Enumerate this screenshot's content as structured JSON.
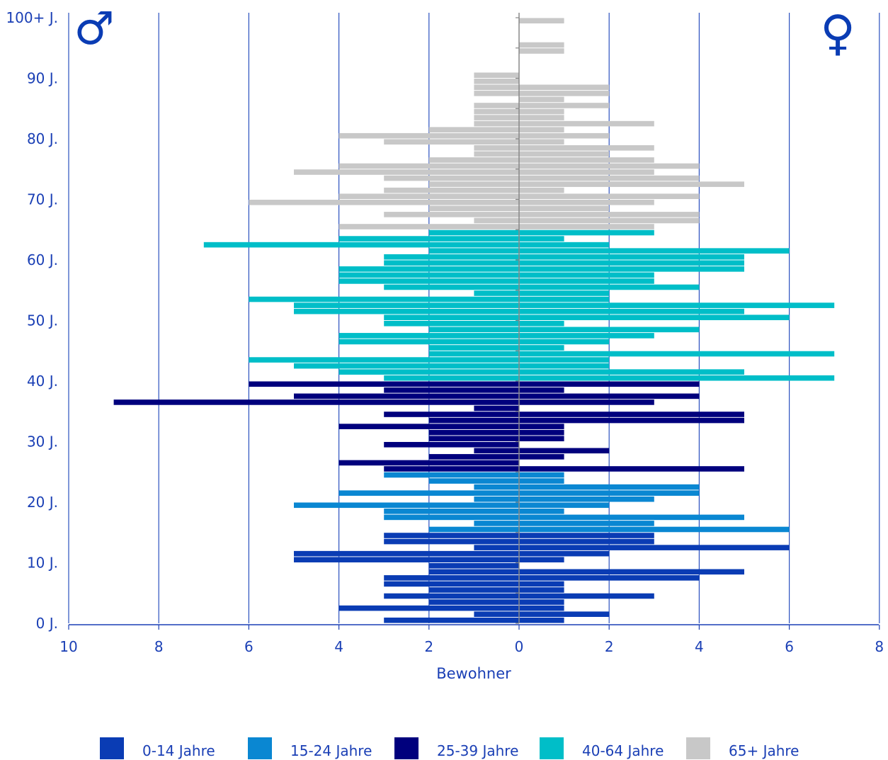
{
  "chart_data": {
    "type": "bar",
    "orientation": "horizontal-population-pyramid",
    "xlabel": "Bewohner",
    "x_ticks_left": [
      "10",
      "8",
      "6",
      "4",
      "2",
      "0"
    ],
    "x_ticks_right": [
      "2",
      "4",
      "6",
      "8"
    ],
    "xlim_male": [
      0,
      10
    ],
    "xlim_female": [
      0,
      8
    ],
    "y_ticks": [
      "100+ J.",
      "90 J.",
      "80 J.",
      "70 J.",
      "60 J.",
      "50 J.",
      "40 J.",
      "30 J.",
      "20 J.",
      "10 J.",
      "0 J."
    ],
    "y_tick_ages": [
      100,
      90,
      80,
      70,
      60,
      50,
      40,
      30,
      20,
      10,
      0
    ],
    "grid": "vertical",
    "symbols": {
      "male": "♂",
      "female": "♀"
    },
    "legend_position": "bottom",
    "series": [
      {
        "name": "0-14 Jahre",
        "color": "#0a3cb4",
        "age_range": [
          0,
          14
        ]
      },
      {
        "name": "15-24 Jahre",
        "color": "#0a87d2",
        "age_range": [
          15,
          24
        ]
      },
      {
        "name": "25-39 Jahre",
        "color": "#00007d",
        "age_range": [
          25,
          39
        ]
      },
      {
        "name": "40-64 Jahre",
        "color": "#00bec8",
        "age_range": [
          40,
          64
        ]
      },
      {
        "name": "65+ Jahre",
        "color": "#c8c8c8",
        "age_range": [
          65,
          100
        ]
      }
    ],
    "male": [
      3,
      1,
      4,
      2,
      3,
      2,
      3,
      3,
      2,
      2,
      5,
      5,
      1,
      3,
      3,
      2,
      1,
      3,
      3,
      5,
      1,
      4,
      1,
      2,
      3,
      3,
      4,
      2,
      1,
      3,
      2,
      2,
      4,
      2,
      3,
      1,
      9,
      5,
      3,
      6,
      3,
      4,
      5,
      6,
      2,
      2,
      4,
      4,
      2,
      3,
      3,
      5,
      5,
      6,
      1,
      3,
      4,
      4,
      4,
      3,
      3,
      2,
      7,
      4,
      2,
      4,
      1,
      3,
      2,
      6,
      4,
      3,
      2,
      3,
      5,
      4,
      2,
      1,
      1,
      3,
      4,
      2,
      1,
      1,
      1,
      1,
      0,
      1,
      1,
      1,
      1,
      0,
      0,
      0,
      0,
      0,
      0,
      0,
      0,
      0,
      0
    ],
    "female": [
      1,
      2,
      1,
      1,
      3,
      1,
      1,
      4,
      5,
      0,
      1,
      2,
      6,
      3,
      3,
      6,
      3,
      5,
      1,
      2,
      3,
      4,
      4,
      1,
      1,
      5,
      0,
      1,
      2,
      0,
      1,
      1,
      1,
      5,
      5,
      0,
      3,
      4,
      1,
      4,
      7,
      5,
      2,
      2,
      7,
      1,
      2,
      3,
      4,
      1,
      6,
      5,
      7,
      2,
      2,
      4,
      3,
      3,
      5,
      5,
      5,
      6,
      2,
      1,
      3,
      3,
      4,
      4,
      2,
      3,
      4,
      1,
      5,
      4,
      3,
      4,
      3,
      2,
      3,
      1,
      2,
      1,
      3,
      1,
      1,
      2,
      1,
      2,
      2,
      0,
      0,
      0,
      0,
      0,
      1,
      1,
      0,
      0,
      0,
      1,
      0
    ]
  }
}
